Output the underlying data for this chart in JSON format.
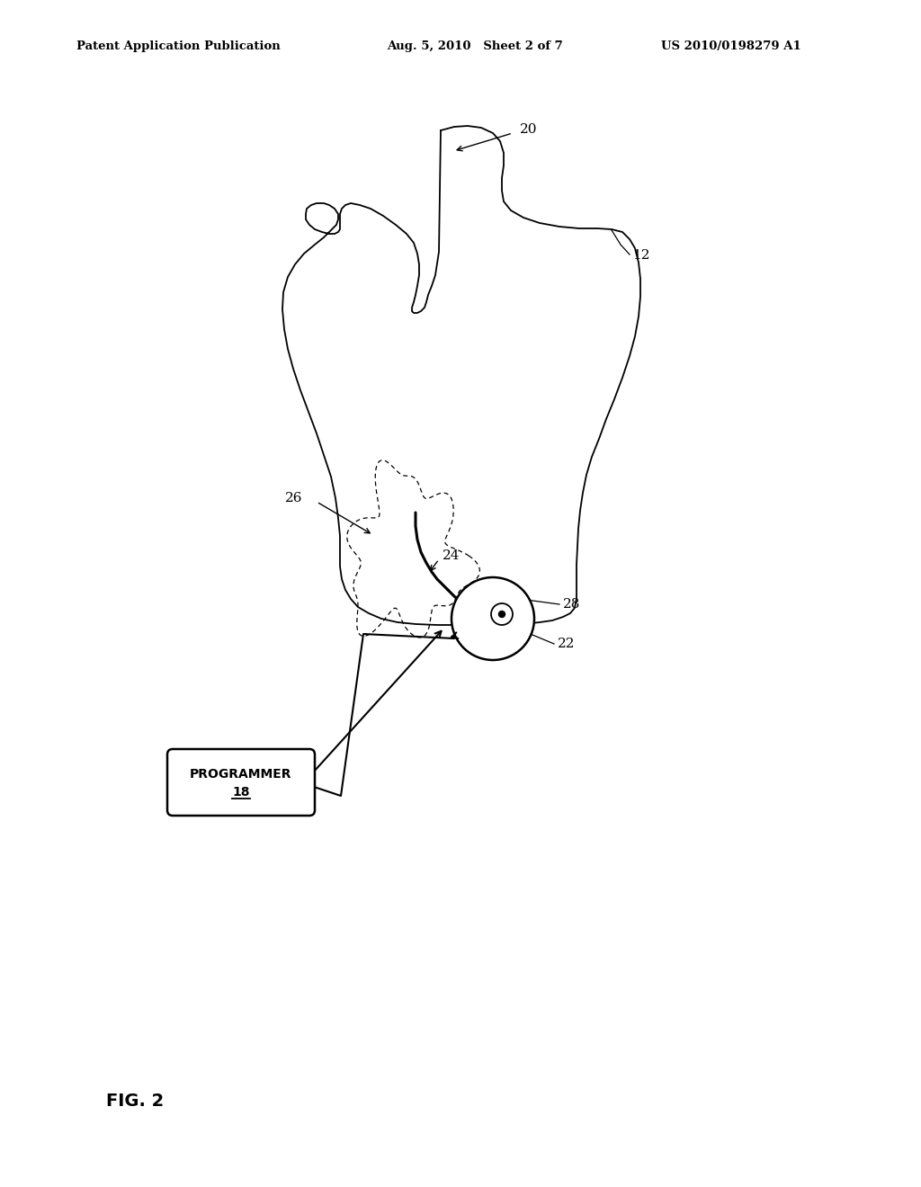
{
  "bg_color": "#ffffff",
  "header_left": "Patent Application Publication",
  "header_mid": "Aug. 5, 2010   Sheet 2 of 7",
  "header_right": "US 2010/0198279 A1",
  "fig_label": "FIG. 2"
}
